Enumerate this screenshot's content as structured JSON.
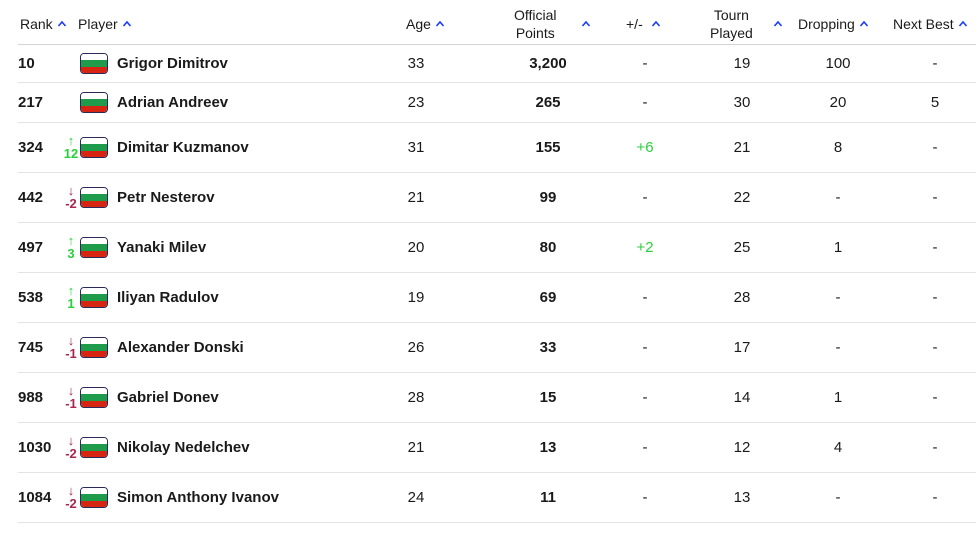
{
  "colors": {
    "up": "#2bcf3b",
    "down": "#a8274f",
    "caret": "#1a3cff",
    "flag_white": "#ffffff",
    "flag_green": "#1e9b4b",
    "flag_red": "#d62612"
  },
  "headers": {
    "rank": "Rank",
    "player": "Player",
    "age": "Age",
    "points_line1": "Official",
    "points_line2": "Points",
    "plusminus": "+/-",
    "played_line1": "Tourn",
    "played_line2": "Played",
    "dropping": "Dropping",
    "next_best": "Next Best"
  },
  "rows": [
    {
      "rank": "10",
      "move_dir": "",
      "move_arrow": "",
      "move_num": "",
      "flag_icon": "bulgaria-flag-icon",
      "player": "Grigor Dimitrov",
      "age": "33",
      "points": "3,200",
      "plusminus": "-",
      "played": "19",
      "dropping": "100",
      "next_best": "-"
    },
    {
      "rank": "217",
      "move_dir": "",
      "move_arrow": "",
      "move_num": "",
      "flag_icon": "bulgaria-flag-icon",
      "player": "Adrian Andreev",
      "age": "23",
      "points": "265",
      "plusminus": "-",
      "played": "30",
      "dropping": "20",
      "next_best": "5"
    },
    {
      "rank": "324",
      "move_dir": "up",
      "move_arrow": "↑",
      "move_num": "12",
      "flag_icon": "bulgaria-flag-icon",
      "player": "Dimitar Kuzmanov",
      "age": "31",
      "points": "155",
      "plusminus": "+6",
      "played": "21",
      "dropping": "8",
      "next_best": "-"
    },
    {
      "rank": "442",
      "move_dir": "down",
      "move_arrow": "↓",
      "move_num": "-2",
      "flag_icon": "bulgaria-flag-icon",
      "player": "Petr Nesterov",
      "age": "21",
      "points": "99",
      "plusminus": "-",
      "played": "22",
      "dropping": "-",
      "next_best": "-"
    },
    {
      "rank": "497",
      "move_dir": "up",
      "move_arrow": "↑",
      "move_num": "3",
      "flag_icon": "bulgaria-flag-icon",
      "player": "Yanaki Milev",
      "age": "20",
      "points": "80",
      "plusminus": "+2",
      "played": "25",
      "dropping": "1",
      "next_best": "-"
    },
    {
      "rank": "538",
      "move_dir": "up",
      "move_arrow": "↑",
      "move_num": "1",
      "flag_icon": "bulgaria-flag-icon",
      "player": "Iliyan Radulov",
      "age": "19",
      "points": "69",
      "plusminus": "-",
      "played": "28",
      "dropping": "-",
      "next_best": "-"
    },
    {
      "rank": "745",
      "move_dir": "down",
      "move_arrow": "↓",
      "move_num": "-1",
      "flag_icon": "bulgaria-flag-icon",
      "player": "Alexander Donski",
      "age": "26",
      "points": "33",
      "plusminus": "-",
      "played": "17",
      "dropping": "-",
      "next_best": "-"
    },
    {
      "rank": "988",
      "move_dir": "down",
      "move_arrow": "↓",
      "move_num": "-1",
      "flag_icon": "bulgaria-flag-icon",
      "player": "Gabriel Donev",
      "age": "28",
      "points": "15",
      "plusminus": "-",
      "played": "14",
      "dropping": "1",
      "next_best": "-"
    },
    {
      "rank": "1030",
      "move_dir": "down",
      "move_arrow": "↓",
      "move_num": "-2",
      "flag_icon": "bulgaria-flag-icon",
      "player": "Nikolay Nedelchev",
      "age": "21",
      "points": "13",
      "plusminus": "-",
      "played": "12",
      "dropping": "4",
      "next_best": "-"
    },
    {
      "rank": "1084",
      "move_dir": "down",
      "move_arrow": "↓",
      "move_num": "-2",
      "flag_icon": "bulgaria-flag-icon",
      "player": "Simon Anthony Ivanov",
      "age": "24",
      "points": "11",
      "plusminus": "-",
      "played": "13",
      "dropping": "-",
      "next_best": "-"
    }
  ]
}
